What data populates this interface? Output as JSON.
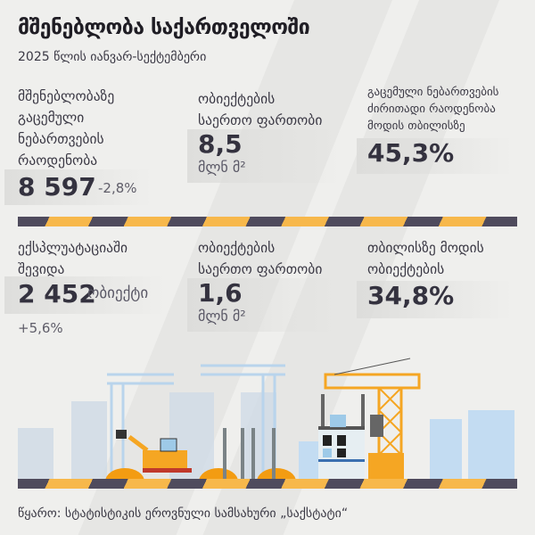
{
  "header": {
    "title": "მშენებლობა საქართველოში",
    "subtitle": "2025 წლის იანვარ-სექტემბერი"
  },
  "stats": [
    {
      "label": [
        "მშენებლობაზე",
        "გაცემული",
        "ნებართვების",
        "რაოდენობა"
      ],
      "value": "8 597",
      "change": "-2,8%"
    },
    {
      "label": [
        "ობიექტების",
        "საერთო ფართობი"
      ],
      "value": "8,5",
      "unit": "მლნ მ²"
    },
    {
      "label": [
        "გაცემული ნებართვების",
        "ძირითადი რაოდენობა",
        "მოდის თბილისზე"
      ],
      "value": "45,3%"
    },
    {
      "label": [
        "ექსპლუატაციაში",
        "შევიდა"
      ],
      "value": "2 452",
      "unit": "ობიექტი",
      "change": "+5,6%"
    },
    {
      "label": [
        "ობიექტების",
        "საერთო ფართობი"
      ],
      "value": "1,6",
      "unit": "მლნ მ²"
    },
    {
      "label": [
        "თბილისზე მოდის",
        "ობიექტების"
      ],
      "value": "34,8%"
    }
  ],
  "footer": {
    "source": "წყარო: სტატისტიკის ეროვნული სამსახური „საქსტატი“"
  },
  "colors": {
    "stripe_dark": "#4f4b5d",
    "stripe_yellow": "#f7b84b",
    "crane": "#f5a623"
  }
}
